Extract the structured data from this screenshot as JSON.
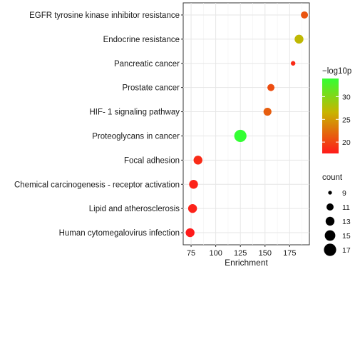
{
  "chart_data": {
    "type": "scatter",
    "title": "",
    "xlabel": "Enrichment",
    "ylabel": "",
    "xlim": [
      67,
      195
    ],
    "x_ticks": [
      75,
      100,
      125,
      150,
      175
    ],
    "grid": true,
    "legend_placement": "right",
    "categories": [
      "EGFR tyrosine kinase inhibitor resistance",
      "Endocrine resistance",
      "Pancreatic cancer",
      "Prostate cancer",
      "HIF- 1 signaling pathway",
      "Proteoglycans in cancer",
      "Focal adhesion",
      "Chemical carcinogenesis -  receptor activation",
      "Lipid and atherosclerosis",
      "Human cytomegalovirus infection"
    ],
    "points": [
      {
        "category": "EGFR tyrosine kinase inhibitor resistance",
        "enrichment": 190,
        "count": 11,
        "neg_log10p": 21
      },
      {
        "category": "Endocrine resistance",
        "enrichment": 184.5,
        "count": 13,
        "neg_log10p": 27
      },
      {
        "category": "Pancreatic cancer",
        "enrichment": 178.5,
        "count": 8,
        "neg_log10p": 18.5
      },
      {
        "category": "Prostate cancer",
        "enrichment": 156,
        "count": 11,
        "neg_log10p": 20.5
      },
      {
        "category": "HIF- 1 signaling pathway",
        "enrichment": 152.5,
        "count": 12,
        "neg_log10p": 21.5
      },
      {
        "category": "Proteoglycans in cancer",
        "enrichment": 125,
        "count": 17,
        "neg_log10p": 34
      },
      {
        "category": "Focal adhesion",
        "enrichment": 82,
        "count": 13,
        "neg_log10p": 18.5
      },
      {
        "category": "Chemical carcinogenesis -  receptor activation",
        "enrichment": 77.5,
        "count": 13,
        "neg_log10p": 18
      },
      {
        "category": "Lipid and atherosclerosis",
        "enrichment": 76.5,
        "count": 13,
        "neg_log10p": 18
      },
      {
        "category": "Human cytomegalovirus infection",
        "enrichment": 74,
        "count": 13,
        "neg_log10p": 17.5
      }
    ],
    "color_legend": {
      "title": "−log10p",
      "min": 17.5,
      "max": 34,
      "ticks": [
        20,
        25,
        30
      ],
      "colors": {
        "low": "#ff1a1a",
        "mid": "#c8b400",
        "high": "#33ff33"
      }
    },
    "size_legend": {
      "title": "count",
      "values": [
        9,
        11,
        13,
        15,
        17
      ]
    }
  }
}
